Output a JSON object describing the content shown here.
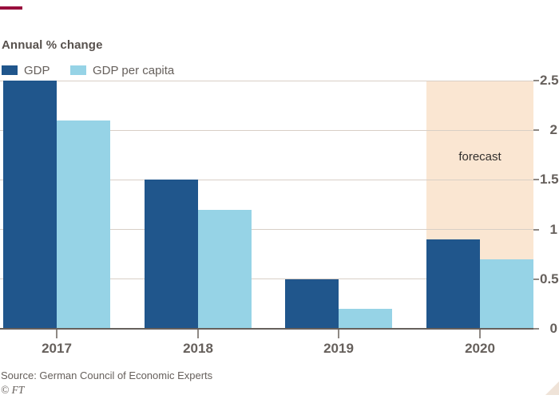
{
  "chart_data": {
    "type": "bar",
    "title": "Annual % change",
    "categories": [
      "2017",
      "2018",
      "2019",
      "2020"
    ],
    "series": [
      {
        "name": "GDP",
        "color": "#20568C",
        "values": [
          2.5,
          1.5,
          0.5,
          0.9
        ]
      },
      {
        "name": "GDP per capita",
        "color": "#96D3E6",
        "values": [
          2.1,
          1.2,
          0.2,
          0.7
        ]
      }
    ],
    "ylim": [
      0,
      2.5
    ],
    "yticks": [
      0,
      0.5,
      1,
      1.5,
      2,
      2.5
    ],
    "ytick_labels": [
      "0",
      "0.5",
      "1",
      "1.5",
      "2",
      "2.5"
    ],
    "grid": true,
    "legend_position": "top-left",
    "y_axis_side": "right",
    "forecast": {
      "label": "forecast",
      "category": "2020",
      "band_color": "#FAE6D2"
    },
    "source": "Source: German Council of Economic Experts",
    "credit": "© FT",
    "colors": {
      "accent_rule": "#990F3D",
      "text": "#66605C",
      "gridline": "#D8CFC6",
      "axis_line": "#66605C",
      "forecast_text": "#33302E",
      "corner_triangle": "#EFE3D8",
      "background": "#FFFFFF"
    }
  }
}
